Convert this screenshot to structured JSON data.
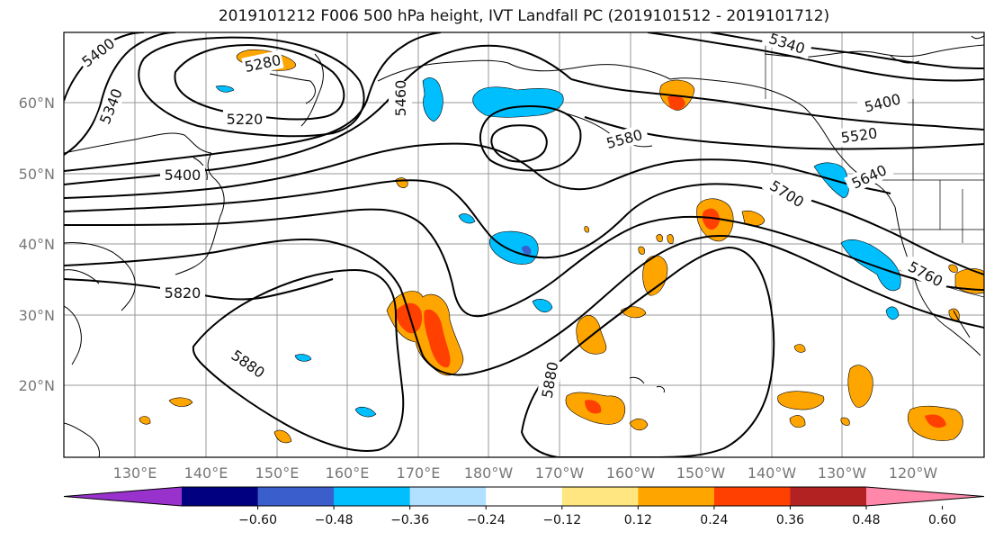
{
  "title": "2019101212 F006 500 hPa height, IVT Landfall PC (2019101512 - 2019101712)",
  "lat_labels": [
    "60°N",
    "50°N",
    "40°N",
    "30°N",
    "20°N"
  ],
  "lon_labels": [
    "130°E",
    "140°E",
    "150°E",
    "160°E",
    "170°E",
    "180°W",
    "170°W",
    "160°W",
    "150°W",
    "140°W",
    "130°W",
    "120°W"
  ],
  "contour_labels": [
    "5400",
    "5340",
    "5280",
    "5220",
    "5460",
    "5400",
    "5820",
    "5880",
    "5880",
    "5580",
    "5340",
    "5400",
    "5520",
    "5640",
    "5700",
    "5760"
  ],
  "colorbar": {
    "colors": [
      "#9932CC",
      "#000080",
      "#3A5FCD",
      "#00BFFF",
      "#B2E0FF",
      "#FFFFFF",
      "#FFE680",
      "#FFA500",
      "#FF4000",
      "#B22222",
      "#FF88AA"
    ],
    "tick_labels": [
      "−0.60",
      "−0.48",
      "−0.36",
      "−0.24",
      "−0.12",
      "0.12",
      "0.24",
      "0.36",
      "0.48",
      "0.60"
    ]
  }
}
